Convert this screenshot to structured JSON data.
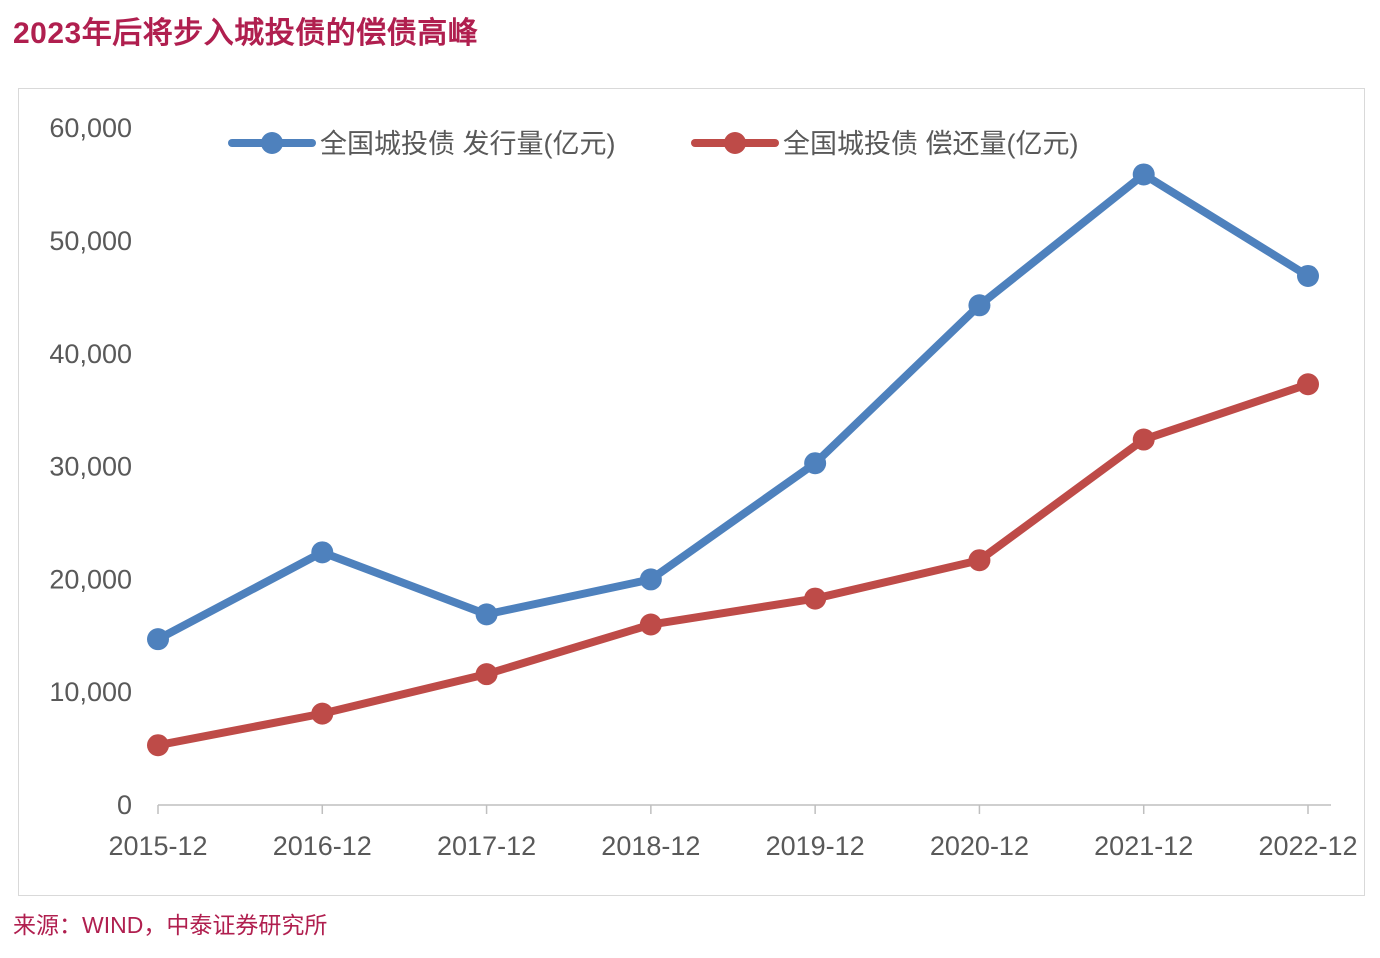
{
  "title": "2023年后将步入城投债的偿债高峰",
  "source_note": "来源：WIND，中泰证券研究所",
  "colors": {
    "title_text": "#B01F4F",
    "source_text": "#B01F4F",
    "issuance_series": "#4E81BD",
    "repayment_series": "#BE4B48",
    "axis_line": "#BFBFBF",
    "frame_border": "#D9D9D9",
    "axis_label_text": "#595959",
    "legend_text": "#595959"
  },
  "chart_data": {
    "type": "line",
    "title": "2023年后将步入城投债的偿债高峰",
    "categories": [
      "2015-12",
      "2016-12",
      "2017-12",
      "2018-12",
      "2019-12",
      "2020-12",
      "2021-12",
      "2022-12"
    ],
    "series": [
      {
        "name": "全国城投债 发行量(亿元)",
        "key": "issuance",
        "color": "#4E81BD",
        "values": [
          14700,
          22400,
          16900,
          20000,
          30300,
          44300,
          55900,
          46900
        ]
      },
      {
        "name": "全国城投债 偿还量(亿元)",
        "key": "repayment",
        "color": "#BE4B48",
        "values": [
          5300,
          8100,
          11600,
          16000,
          18300,
          21700,
          32400,
          37300
        ]
      }
    ],
    "xlabel": "",
    "ylabel": "",
    "ylim": [
      0,
      60000
    ],
    "ytick_step": 10000,
    "ytick_labels": [
      "0",
      "10,000",
      "20,000",
      "30,000",
      "40,000",
      "50,000",
      "60,000"
    ],
    "legend_position": "top",
    "grid": false,
    "marker": "circle"
  }
}
